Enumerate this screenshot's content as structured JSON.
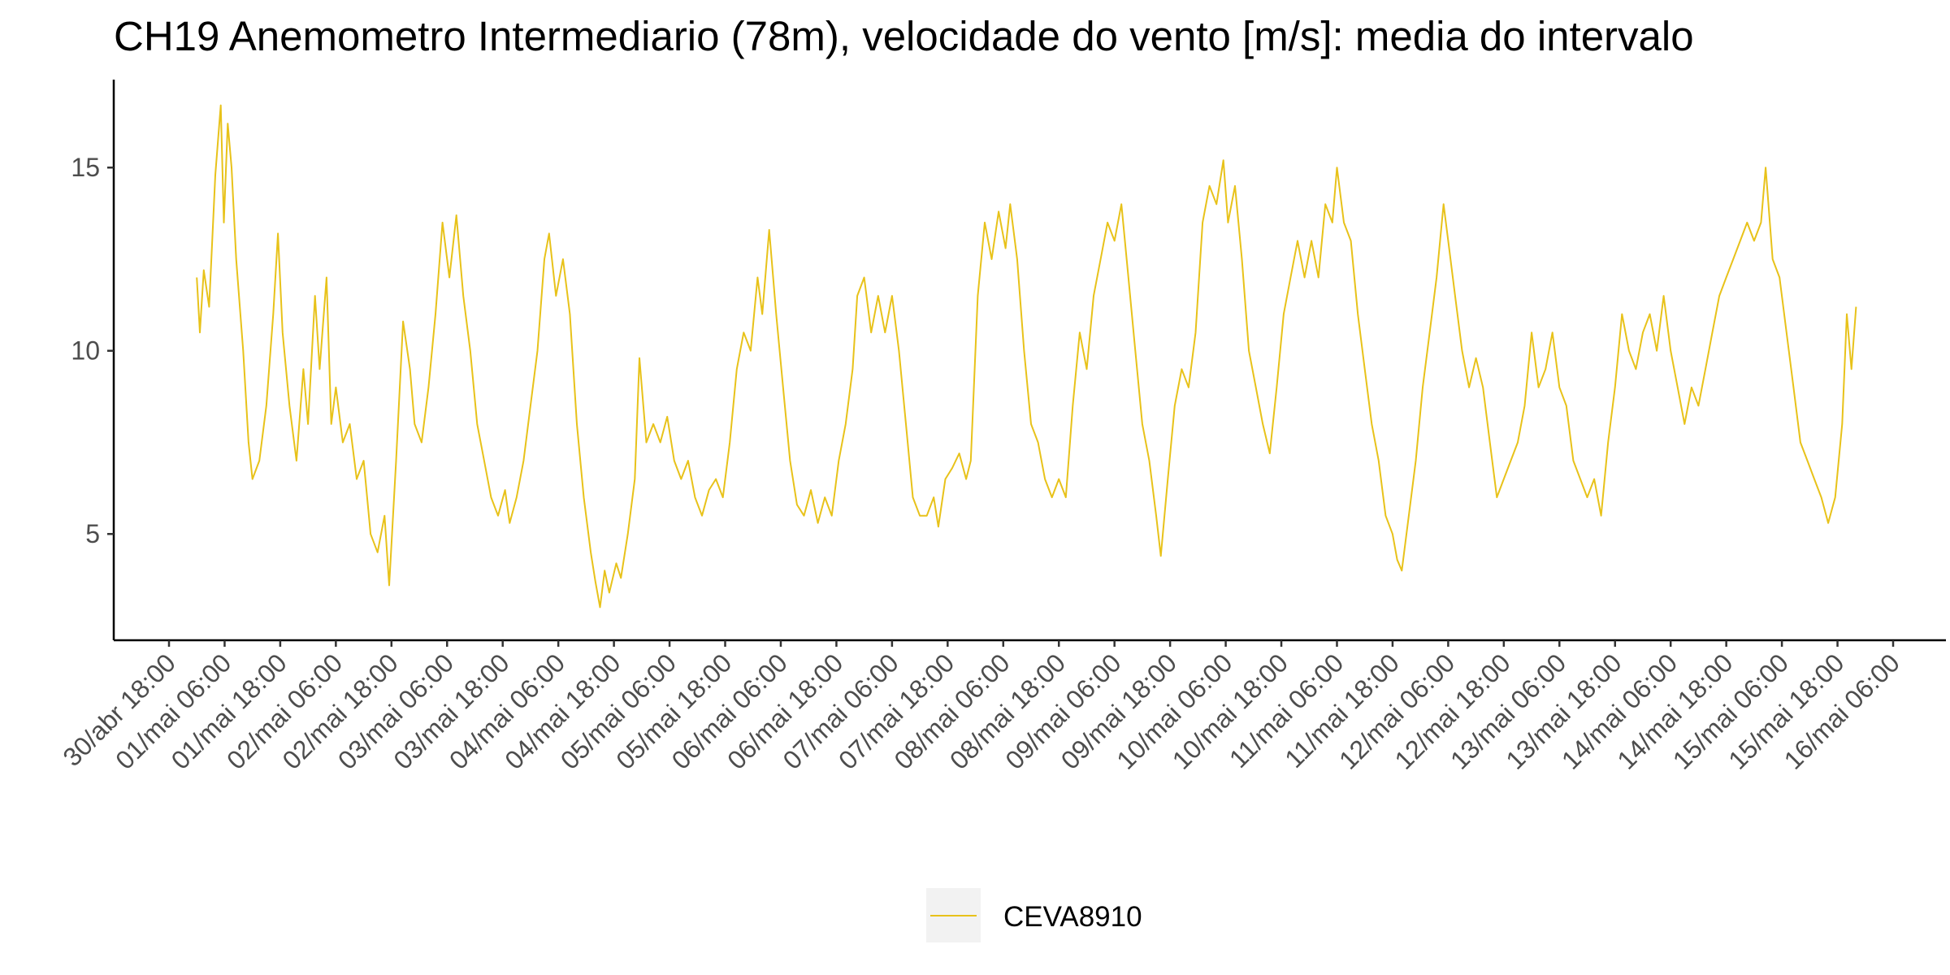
{
  "chart_data": {
    "type": "line",
    "title": "CH19 Anemometro Intermediario (78m), velocidade do vento [m/s]: media do intervalo",
    "xlabel": "",
    "ylabel": "",
    "x_ticks": [
      "30/abr 18:00",
      "01/mai 06:00",
      "01/mai 18:00",
      "02/mai 06:00",
      "02/mai 18:00",
      "03/mai 06:00",
      "03/mai 18:00",
      "04/mai 06:00",
      "04/mai 18:00",
      "05/mai 06:00",
      "05/mai 18:00",
      "06/mai 06:00",
      "06/mai 18:00",
      "07/mai 06:00",
      "07/mai 18:00",
      "08/mai 06:00",
      "08/mai 18:00",
      "09/mai 06:00",
      "09/mai 18:00",
      "10/mai 06:00",
      "10/mai 18:00",
      "11/mai 06:00",
      "11/mai 18:00",
      "12/mai 06:00",
      "12/mai 18:00",
      "13/mai 06:00",
      "13/mai 18:00",
      "14/mai 06:00",
      "14/mai 18:00",
      "15/mai 06:00",
      "15/mai 18:00",
      "16/mai 06:00"
    ],
    "xlim": [
      "30/abr 18:00",
      "16/mai 06:00"
    ],
    "y_ticks": [
      5,
      10,
      15
    ],
    "ylim": [
      2.1,
      17.4
    ],
    "grid": false,
    "legend_position": "bottom",
    "series": [
      {
        "name": "CEVA8910",
        "color": "#E8C21A",
        "points": [
          [
            "01/mai 00:00",
            12.0
          ],
          [
            "01/mai 00:40",
            10.5
          ],
          [
            "01/mai 01:30",
            12.2
          ],
          [
            "01/mai 02:40",
            11.2
          ],
          [
            "01/mai 04:00",
            14.8
          ],
          [
            "01/mai 05:10",
            16.7
          ],
          [
            "01/mai 05:50",
            13.5
          ],
          [
            "01/mai 06:40",
            16.2
          ],
          [
            "01/mai 07:30",
            15.0
          ],
          [
            "01/mai 08:30",
            12.5
          ],
          [
            "01/mai 10:00",
            10.0
          ],
          [
            "01/mai 11:10",
            7.5
          ],
          [
            "01/mai 12:00",
            6.5
          ],
          [
            "01/mai 13:30",
            7.0
          ],
          [
            "01/mai 15:00",
            8.5
          ],
          [
            "01/mai 16:30",
            11.0
          ],
          [
            "01/mai 17:30",
            13.2
          ],
          [
            "01/mai 18:30",
            10.5
          ],
          [
            "01/mai 20:00",
            8.5
          ],
          [
            "01/mai 21:30",
            7.0
          ],
          [
            "01/mai 23:00",
            9.5
          ],
          [
            "02/mai 00:00",
            8.0
          ],
          [
            "02/mai 01:30",
            11.5
          ],
          [
            "02/mai 02:30",
            9.5
          ],
          [
            "02/mai 04:00",
            12.0
          ],
          [
            "02/mai 05:00",
            8.0
          ],
          [
            "02/mai 06:00",
            9.0
          ],
          [
            "02/mai 07:30",
            7.5
          ],
          [
            "02/mai 09:00",
            8.0
          ],
          [
            "02/mai 10:30",
            6.5
          ],
          [
            "02/mai 12:00",
            7.0
          ],
          [
            "02/mai 13:30",
            5.0
          ],
          [
            "02/mai 15:00",
            4.5
          ],
          [
            "02/mai 16:30",
            5.5
          ],
          [
            "02/mai 17:30",
            3.6
          ],
          [
            "02/mai 19:00",
            7.0
          ],
          [
            "02/mai 20:30",
            10.8
          ],
          [
            "02/mai 22:00",
            9.5
          ],
          [
            "02/mai 23:00",
            8.0
          ],
          [
            "03/mai 00:30",
            7.5
          ],
          [
            "03/mai 02:00",
            9.0
          ],
          [
            "03/mai 03:30",
            11.0
          ],
          [
            "03/mai 05:00",
            13.5
          ],
          [
            "03/mai 06:30",
            12.0
          ],
          [
            "03/mai 08:00",
            13.7
          ],
          [
            "03/mai 09:30",
            11.5
          ],
          [
            "03/mai 11:00",
            10.0
          ],
          [
            "03/mai 12:30",
            8.0
          ],
          [
            "03/mai 14:00",
            7.0
          ],
          [
            "03/mai 15:30",
            6.0
          ],
          [
            "03/mai 17:00",
            5.5
          ],
          [
            "03/mai 18:30",
            6.2
          ],
          [
            "03/mai 19:30",
            5.3
          ],
          [
            "03/mai 21:00",
            6.0
          ],
          [
            "03/mai 22:30",
            7.0
          ],
          [
            "04/mai 00:00",
            8.5
          ],
          [
            "04/mai 01:30",
            10.0
          ],
          [
            "04/mai 03:00",
            12.5
          ],
          [
            "04/mai 04:00",
            13.2
          ],
          [
            "04/mai 05:30",
            11.5
          ],
          [
            "04/mai 07:00",
            12.5
          ],
          [
            "04/mai 08:30",
            11.0
          ],
          [
            "04/mai 10:00",
            8.0
          ],
          [
            "04/mai 11:30",
            6.0
          ],
          [
            "04/mai 13:00",
            4.5
          ],
          [
            "04/mai 14:00",
            3.7
          ],
          [
            "04/mai 15:00",
            3.0
          ],
          [
            "04/mai 16:00",
            4.0
          ],
          [
            "04/mai 17:00",
            3.4
          ],
          [
            "04/mai 18:30",
            4.2
          ],
          [
            "04/mai 19:30",
            3.8
          ],
          [
            "04/mai 21:00",
            5.0
          ],
          [
            "04/mai 22:30",
            6.5
          ],
          [
            "04/mai 23:30",
            9.8
          ],
          [
            "05/mai 01:00",
            7.5
          ],
          [
            "05/mai 02:30",
            8.0
          ],
          [
            "05/mai 04:00",
            7.5
          ],
          [
            "05/mai 05:30",
            8.2
          ],
          [
            "05/mai 07:00",
            7.0
          ],
          [
            "05/mai 08:30",
            6.5
          ],
          [
            "05/mai 10:00",
            7.0
          ],
          [
            "05/mai 11:30",
            6.0
          ],
          [
            "05/mai 13:00",
            5.5
          ],
          [
            "05/mai 14:30",
            6.2
          ],
          [
            "05/mai 16:00",
            6.5
          ],
          [
            "05/mai 17:30",
            6.0
          ],
          [
            "05/mai 19:00",
            7.5
          ],
          [
            "05/mai 20:30",
            9.5
          ],
          [
            "05/mai 22:00",
            10.5
          ],
          [
            "05/mai 23:30",
            10.0
          ],
          [
            "06/mai 01:00",
            12.0
          ],
          [
            "06/mai 02:00",
            11.0
          ],
          [
            "06/mai 03:30",
            13.3
          ],
          [
            "06/mai 05:00",
            11.0
          ],
          [
            "06/mai 06:30",
            9.0
          ],
          [
            "06/mai 08:00",
            7.0
          ],
          [
            "06/mai 09:30",
            5.8
          ],
          [
            "06/mai 11:00",
            5.5
          ],
          [
            "06/mai 12:30",
            6.2
          ],
          [
            "06/mai 14:00",
            5.3
          ],
          [
            "06/mai 15:30",
            6.0
          ],
          [
            "06/mai 17:00",
            5.5
          ],
          [
            "06/mai 18:30",
            7.0
          ],
          [
            "06/mai 20:00",
            8.0
          ],
          [
            "06/mai 21:30",
            9.5
          ],
          [
            "06/mai 22:30",
            11.5
          ],
          [
            "07/mai 00:00",
            12.0
          ],
          [
            "07/mai 01:30",
            10.5
          ],
          [
            "07/mai 03:00",
            11.5
          ],
          [
            "07/mai 04:30",
            10.5
          ],
          [
            "07/mai 06:00",
            11.5
          ],
          [
            "07/mai 07:30",
            10.0
          ],
          [
            "07/mai 09:00",
            8.0
          ],
          [
            "07/mai 10:30",
            6.0
          ],
          [
            "07/mai 12:00",
            5.5
          ],
          [
            "07/mai 13:30",
            5.5
          ],
          [
            "07/mai 15:00",
            6.0
          ],
          [
            "07/mai 16:00",
            5.2
          ],
          [
            "07/mai 17:30",
            6.5
          ],
          [
            "07/mai 19:00",
            6.8
          ],
          [
            "07/mai 20:30",
            7.2
          ],
          [
            "07/mai 22:00",
            6.5
          ],
          [
            "07/mai 23:00",
            7.0
          ],
          [
            "08/mai 00:30",
            11.5
          ],
          [
            "08/mai 02:00",
            13.5
          ],
          [
            "08/mai 03:30",
            12.5
          ],
          [
            "08/mai 05:00",
            13.8
          ],
          [
            "08/mai 06:30",
            12.8
          ],
          [
            "08/mai 07:30",
            14.0
          ],
          [
            "08/mai 09:00",
            12.5
          ],
          [
            "08/mai 10:30",
            10.0
          ],
          [
            "08/mai 12:00",
            8.0
          ],
          [
            "08/mai 13:30",
            7.5
          ],
          [
            "08/mai 15:00",
            6.5
          ],
          [
            "08/mai 16:30",
            6.0
          ],
          [
            "08/mai 18:00",
            6.5
          ],
          [
            "08/mai 19:30",
            6.0
          ],
          [
            "08/mai 21:00",
            8.5
          ],
          [
            "08/mai 22:30",
            10.5
          ],
          [
            "09/mai 00:00",
            9.5
          ],
          [
            "09/mai 01:30",
            11.5
          ],
          [
            "09/mai 03:00",
            12.5
          ],
          [
            "09/mai 04:30",
            13.5
          ],
          [
            "09/mai 06:00",
            13.0
          ],
          [
            "09/mai 07:30",
            14.0
          ],
          [
            "09/mai 09:00",
            12.0
          ],
          [
            "09/mai 10:30",
            10.0
          ],
          [
            "09/mai 12:00",
            8.0
          ],
          [
            "09/mai 13:30",
            7.0
          ],
          [
            "09/mai 15:00",
            5.5
          ],
          [
            "09/mai 16:00",
            4.4
          ],
          [
            "09/mai 17:30",
            6.5
          ],
          [
            "09/mai 19:00",
            8.5
          ],
          [
            "09/mai 20:30",
            9.5
          ],
          [
            "09/mai 22:00",
            9.0
          ],
          [
            "09/mai 23:30",
            10.5
          ],
          [
            "10/mai 01:00",
            13.5
          ],
          [
            "10/mai 02:30",
            14.5
          ],
          [
            "10/mai 04:00",
            14.0
          ],
          [
            "10/mai 05:30",
            15.2
          ],
          [
            "10/mai 06:30",
            13.5
          ],
          [
            "10/mai 08:00",
            14.5
          ],
          [
            "10/mai 09:30",
            12.5
          ],
          [
            "10/mai 11:00",
            10.0
          ],
          [
            "10/mai 12:30",
            9.0
          ],
          [
            "10/mai 14:00",
            8.0
          ],
          [
            "10/mai 15:30",
            7.2
          ],
          [
            "10/mai 17:00",
            9.0
          ],
          [
            "10/mai 18:30",
            11.0
          ],
          [
            "10/mai 20:00",
            12.0
          ],
          [
            "10/mai 21:30",
            13.0
          ],
          [
            "10/mai 23:00",
            12.0
          ],
          [
            "11/mai 00:30",
            13.0
          ],
          [
            "11/mai 02:00",
            12.0
          ],
          [
            "11/mai 03:30",
            14.0
          ],
          [
            "11/mai 05:00",
            13.5
          ],
          [
            "11/mai 06:00",
            15.0
          ],
          [
            "11/mai 07:30",
            13.5
          ],
          [
            "11/mai 09:00",
            13.0
          ],
          [
            "11/mai 10:30",
            11.0
          ],
          [
            "11/mai 12:00",
            9.5
          ],
          [
            "11/mai 13:30",
            8.0
          ],
          [
            "11/mai 15:00",
            7.0
          ],
          [
            "11/mai 16:30",
            5.5
          ],
          [
            "11/mai 18:00",
            5.0
          ],
          [
            "11/mai 19:00",
            4.3
          ],
          [
            "11/mai 20:00",
            4.0
          ],
          [
            "11/mai 21:30",
            5.5
          ],
          [
            "11/mai 23:00",
            7.0
          ],
          [
            "12/mai 00:30",
            9.0
          ],
          [
            "12/mai 02:00",
            10.5
          ],
          [
            "12/mai 03:30",
            12.0
          ],
          [
            "12/mai 05:00",
            14.0
          ],
          [
            "12/mai 06:00",
            13.0
          ],
          [
            "12/mai 07:30",
            11.5
          ],
          [
            "12/mai 09:00",
            10.0
          ],
          [
            "12/mai 10:30",
            9.0
          ],
          [
            "12/mai 12:00",
            9.8
          ],
          [
            "12/mai 13:30",
            9.0
          ],
          [
            "12/mai 15:00",
            7.5
          ],
          [
            "12/mai 16:30",
            6.0
          ],
          [
            "12/mai 18:00",
            6.5
          ],
          [
            "12/mai 19:30",
            7.0
          ],
          [
            "12/mai 21:00",
            7.5
          ],
          [
            "12/mai 22:30",
            8.5
          ],
          [
            "13/mai 00:00",
            10.5
          ],
          [
            "13/mai 01:30",
            9.0
          ],
          [
            "13/mai 03:00",
            9.5
          ],
          [
            "13/mai 04:30",
            10.5
          ],
          [
            "13/mai 06:00",
            9.0
          ],
          [
            "13/mai 07:30",
            8.5
          ],
          [
            "13/mai 09:00",
            7.0
          ],
          [
            "13/mai 10:30",
            6.5
          ],
          [
            "13/mai 12:00",
            6.0
          ],
          [
            "13/mai 13:30",
            6.5
          ],
          [
            "13/mai 15:00",
            5.5
          ],
          [
            "13/mai 16:30",
            7.5
          ],
          [
            "13/mai 18:00",
            9.0
          ],
          [
            "13/mai 19:30",
            11.0
          ],
          [
            "13/mai 21:00",
            10.0
          ],
          [
            "13/mai 22:30",
            9.5
          ],
          [
            "14/mai 00:00",
            10.5
          ],
          [
            "14/mai 01:30",
            11.0
          ],
          [
            "14/mai 03:00",
            10.0
          ],
          [
            "14/mai 04:30",
            11.5
          ],
          [
            "14/mai 06:00",
            10.0
          ],
          [
            "14/mai 07:30",
            9.0
          ],
          [
            "14/mai 09:00",
            8.0
          ],
          [
            "14/mai 10:30",
            9.0
          ],
          [
            "14/mai 12:00",
            8.5
          ],
          [
            "14/mai 13:30",
            9.5
          ],
          [
            "14/mai 15:00",
            10.5
          ],
          [
            "14/mai 16:30",
            11.5
          ],
          [
            "14/mai 18:00",
            12.0
          ],
          [
            "14/mai 19:30",
            12.5
          ],
          [
            "14/mai 21:00",
            13.0
          ],
          [
            "14/mai 22:30",
            13.5
          ],
          [
            "15/mai 00:00",
            13.0
          ],
          [
            "15/mai 01:30",
            13.5
          ],
          [
            "15/mai 02:30",
            15.0
          ],
          [
            "15/mai 04:00",
            12.5
          ],
          [
            "15/mai 05:30",
            12.0
          ],
          [
            "15/mai 07:00",
            10.5
          ],
          [
            "15/mai 08:30",
            9.0
          ],
          [
            "15/mai 10:00",
            7.5
          ],
          [
            "15/mai 11:30",
            7.0
          ],
          [
            "15/mai 13:00",
            6.5
          ],
          [
            "15/mai 14:30",
            6.0
          ],
          [
            "15/mai 16:00",
            5.3
          ],
          [
            "15/mai 17:30",
            6.0
          ],
          [
            "15/mai 19:00",
            8.0
          ],
          [
            "15/mai 20:00",
            11.0
          ],
          [
            "15/mai 21:00",
            9.5
          ],
          [
            "15/mai 22:00",
            11.2
          ]
        ]
      }
    ]
  }
}
